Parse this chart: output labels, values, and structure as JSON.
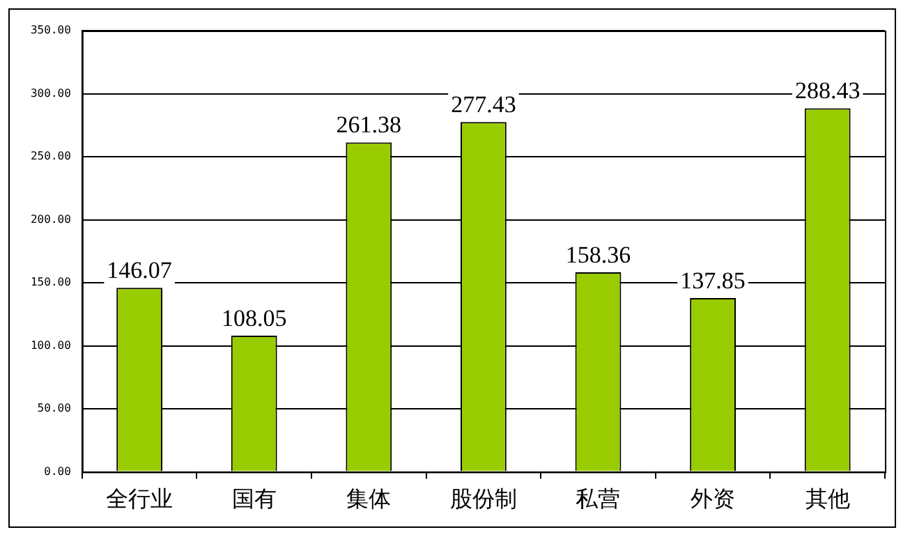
{
  "chart_data": {
    "type": "bar",
    "categories": [
      "全行业",
      "国有",
      "集体",
      "股份制",
      "私营",
      "外资",
      "其他"
    ],
    "values": [
      146.07,
      108.05,
      261.38,
      277.43,
      158.36,
      137.85,
      288.43
    ],
    "color": "#99cc00",
    "ylim": [
      0,
      350
    ],
    "yticks": [
      {
        "value": 0,
        "label": "0.00"
      },
      {
        "value": 50,
        "label": "50.00"
      },
      {
        "value": 100,
        "label": "100.00"
      },
      {
        "value": 150,
        "label": "150.00"
      },
      {
        "value": 200,
        "label": "200.00"
      },
      {
        "value": 250,
        "label": "250.00"
      },
      {
        "value": 300,
        "label": "300.00"
      },
      {
        "value": 350,
        "label": "350.00"
      }
    ],
    "grid": "y",
    "data_labels": true,
    "legend": false
  }
}
